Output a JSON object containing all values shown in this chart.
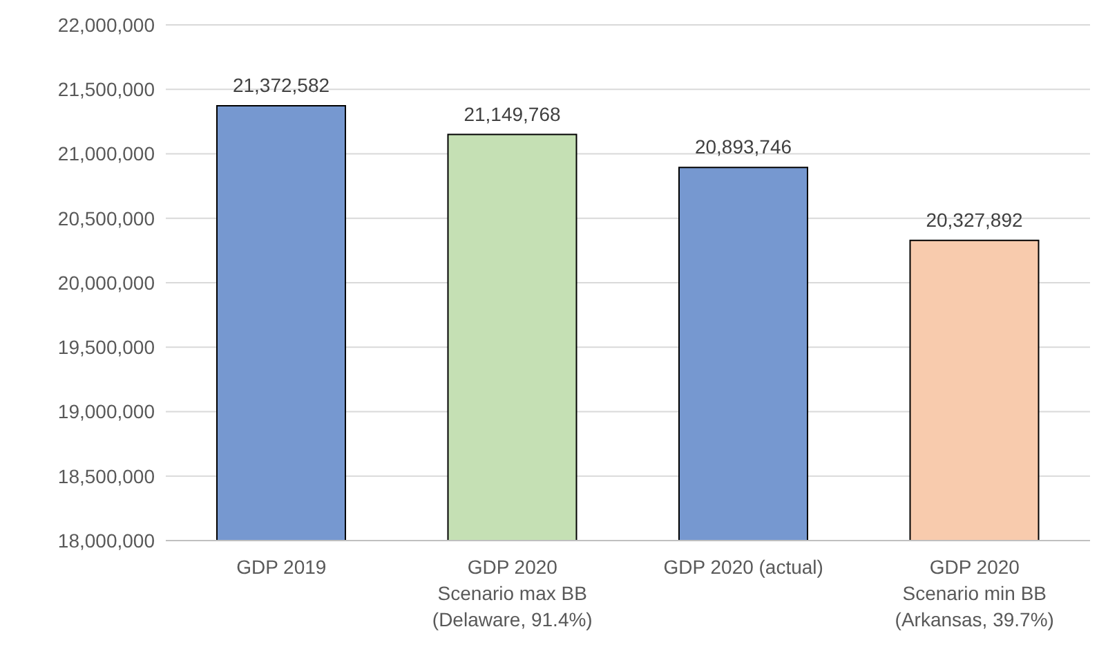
{
  "chart_data": {
    "type": "bar",
    "categories": [
      "GDP 2019",
      "GDP 2020\nScenario max BB\n(Delaware, 91.4%)",
      "GDP 2020 (actual)",
      "GDP 2020\nScenario min BB\n(Arkansas, 39.7%)"
    ],
    "values": [
      21372582,
      21149768,
      20893746,
      20327892
    ],
    "colors": [
      "#7698d0",
      "#c5e0b4",
      "#7698d0",
      "#f8cbad"
    ],
    "value_labels": [
      "21,372,582",
      "21,149,768",
      "20,893,746",
      "20,327,892"
    ],
    "ylim": [
      18000000,
      22000000
    ],
    "yticks": [
      {
        "value": 18000000,
        "label": "18,000,000"
      },
      {
        "value": 18500000,
        "label": "18,500,000"
      },
      {
        "value": 19000000,
        "label": "19,000,000"
      },
      {
        "value": 19500000,
        "label": "19,500,000"
      },
      {
        "value": 20000000,
        "label": "20,000,000"
      },
      {
        "value": 20500000,
        "label": "20,500,000"
      },
      {
        "value": 21000000,
        "label": "21,000,000"
      },
      {
        "value": 21500000,
        "label": "21,500,000"
      },
      {
        "value": 22000000,
        "label": "22,000,000"
      }
    ],
    "grid": "y",
    "legend": false
  }
}
